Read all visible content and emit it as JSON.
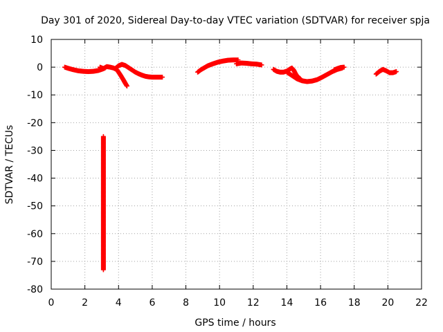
{
  "chart_data": {
    "type": "scatter",
    "title": "Day 301 of 2020, Sidereal Day-to-day VTEC variation (SDTVAR) for receiver spja",
    "xlabel": "GPS time / hours",
    "ylabel": "SDTVAR / TECUs",
    "xlim": [
      0,
      22
    ],
    "ylim": [
      -80,
      10
    ],
    "xticks": [
      0,
      2,
      4,
      6,
      8,
      10,
      12,
      14,
      16,
      18,
      20,
      22
    ],
    "yticks": [
      10,
      0,
      -10,
      -20,
      -30,
      -40,
      -50,
      -60,
      -70,
      -80
    ],
    "grid": true,
    "marker": "plus",
    "marker_color": "#ff0000",
    "series": [
      {
        "name": "arc-1",
        "x": [
          0.8,
          1.0,
          1.3,
          1.6,
          1.9,
          2.2,
          2.5,
          2.8,
          3.0,
          3.2
        ],
        "y": [
          0.0,
          -0.4,
          -0.9,
          -1.3,
          -1.5,
          -1.6,
          -1.5,
          -1.2,
          -0.8,
          -0.3
        ]
      },
      {
        "name": "arc-2",
        "x": [
          2.9,
          3.1,
          3.3,
          3.5,
          3.7,
          3.9,
          4.0,
          4.1,
          4.2,
          4.3,
          4.4,
          4.5
        ],
        "y": [
          0.0,
          -0.5,
          0.2,
          0.0,
          -0.3,
          -0.9,
          -1.8,
          -2.7,
          -3.7,
          -4.7,
          -5.8,
          -6.8
        ]
      },
      {
        "name": "arc-3",
        "x": [
          3.8,
          4.0,
          4.2,
          4.4,
          4.6,
          4.8,
          5.0,
          5.2,
          5.4,
          5.6,
          5.8,
          6.0,
          6.2,
          6.4,
          6.6
        ],
        "y": [
          -0.5,
          0.5,
          1.0,
          0.6,
          -0.2,
          -1.0,
          -1.8,
          -2.4,
          -2.9,
          -3.3,
          -3.5,
          -3.6,
          -3.6,
          -3.6,
          -3.6
        ]
      },
      {
        "name": "arc-4",
        "x": [
          8.7,
          8.9,
          9.1,
          9.3,
          9.6,
          9.9,
          10.2,
          10.5,
          10.8,
          11.1
        ],
        "y": [
          -1.8,
          -0.9,
          -0.2,
          0.5,
          1.2,
          1.8,
          2.2,
          2.5,
          2.6,
          2.6
        ]
      },
      {
        "name": "arc-5",
        "x": [
          11.0,
          11.3,
          11.6,
          11.9,
          12.2,
          12.5
        ],
        "y": [
          1.2,
          1.5,
          1.4,
          1.2,
          1.1,
          0.8
        ]
      },
      {
        "name": "arc-6",
        "x": [
          13.2,
          13.4,
          13.6,
          13.8,
          14.0,
          14.2,
          14.3,
          14.4,
          14.5,
          14.6,
          14.8
        ],
        "y": [
          -0.8,
          -1.5,
          -1.8,
          -1.8,
          -1.4,
          -0.6,
          -0.3,
          -1.0,
          -2.2,
          -3.2,
          -4.2
        ]
      },
      {
        "name": "arc-7",
        "x": [
          14.0,
          14.3,
          14.6,
          14.9,
          15.2,
          15.5,
          15.8,
          16.1,
          16.4,
          16.7,
          17.0,
          17.3
        ],
        "y": [
          -1.8,
          -3.0,
          -4.2,
          -4.9,
          -5.2,
          -5.0,
          -4.5,
          -3.6,
          -2.6,
          -1.6,
          -0.8,
          -0.3
        ]
      },
      {
        "name": "arc-8",
        "x": [
          16.8,
          17.0,
          17.2,
          17.4
        ],
        "y": [
          -1.0,
          -0.5,
          -0.1,
          0.0
        ]
      },
      {
        "name": "arc-9",
        "x": [
          19.3,
          19.5,
          19.7,
          19.9,
          20.1,
          20.3,
          20.5
        ],
        "y": [
          -2.5,
          -1.5,
          -0.8,
          -1.3,
          -2.0,
          -2.0,
          -1.6
        ]
      },
      {
        "name": "outliers",
        "x": [
          3.1,
          3.1
        ],
        "y": [
          -25,
          -73
        ]
      }
    ]
  }
}
